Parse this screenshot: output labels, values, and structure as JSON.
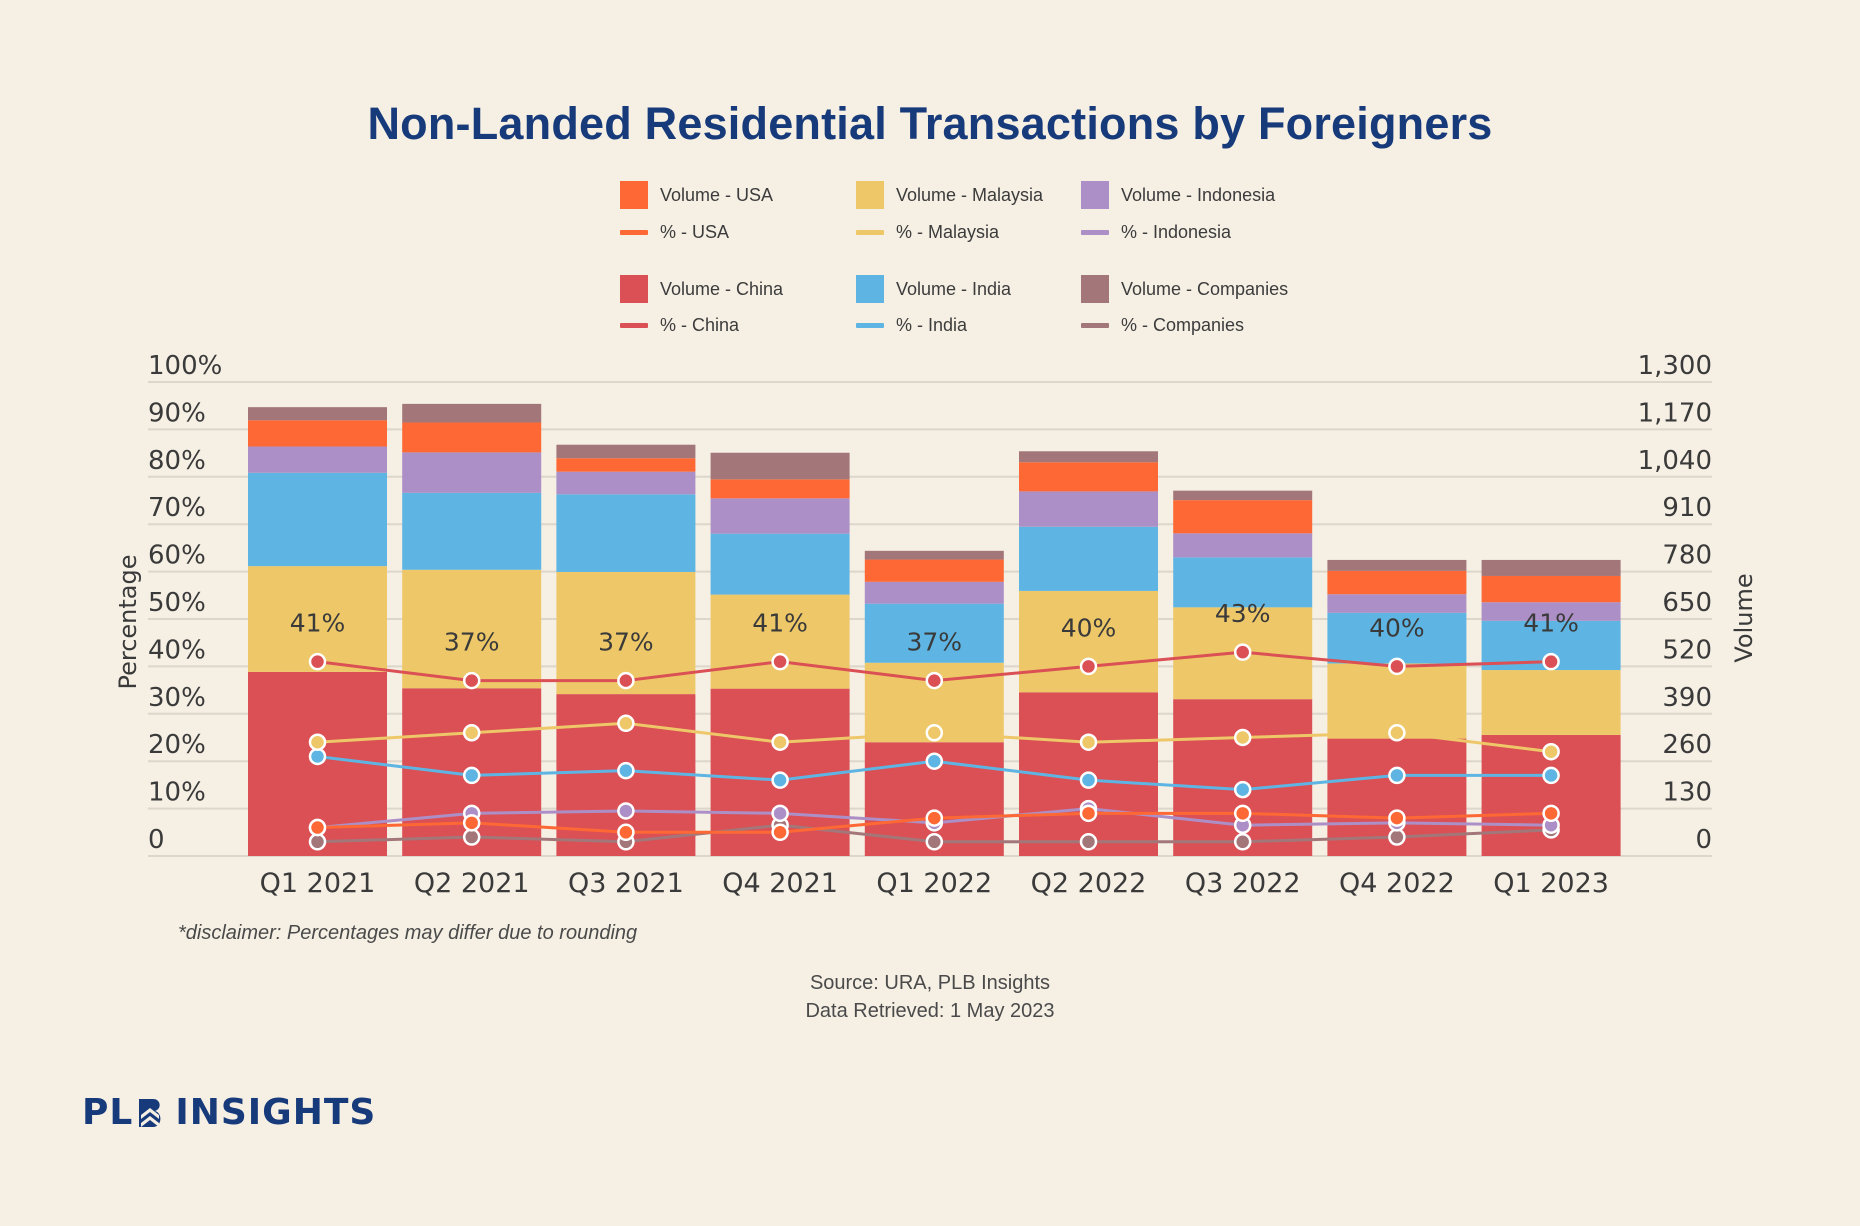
{
  "title": "Non-Landed Residential Transactions by Foreigners",
  "legend": [
    {
      "label": "Volume - USA",
      "kind": "bar",
      "series": "USA"
    },
    {
      "label": "% - USA",
      "kind": "line",
      "series": "USA"
    },
    {
      "label": "Volume - Malaysia",
      "kind": "bar",
      "series": "Malaysia"
    },
    {
      "label": "% - Malaysia",
      "kind": "line",
      "series": "Malaysia"
    },
    {
      "label": "Volume - Indonesia",
      "kind": "bar",
      "series": "Indonesia"
    },
    {
      "label": "% - Indonesia",
      "kind": "line",
      "series": "Indonesia"
    },
    {
      "label": "Volume - China",
      "kind": "bar",
      "series": "China"
    },
    {
      "label": "% - China",
      "kind": "line",
      "series": "China"
    },
    {
      "label": "Volume - India",
      "kind": "bar",
      "series": "India"
    },
    {
      "label": "% - India",
      "kind": "line",
      "series": "India"
    },
    {
      "label": "Volume - Companies",
      "kind": "bar",
      "series": "Companies"
    },
    {
      "label": "% - Companies",
      "kind": "line",
      "series": "Companies"
    }
  ],
  "colors": {
    "China": "#DA5055",
    "Malaysia": "#EEC868",
    "India": "#5EB5E3",
    "Indonesia": "#AC8FC6",
    "USA": "#FD6835",
    "Companies": "#A3777A",
    "background": "#F5EFE4",
    "title": "#173A7A",
    "grid": "#DDD6CB"
  },
  "chart_data": {
    "type": "bar",
    "subtype": "stacked bar with line overlay (dual axis)",
    "title": "Non-Landed Residential Transactions by Foreigners",
    "categories": [
      "Q1 2021",
      "Q2 2021",
      "Q3 2021",
      "Q4 2021",
      "Q1 2022",
      "Q2 2022",
      "Q3 2022",
      "Q4 2022",
      "Q1 2023"
    ],
    "ylabel_left": "Percentage",
    "ylabel_right": "Volume",
    "ylim_left": [
      0,
      100
    ],
    "ylim_right": [
      0,
      1300
    ],
    "yticks_left": [
      "0",
      "10%",
      "20%",
      "30%",
      "40%",
      "50%",
      "60%",
      "70%",
      "80%",
      "90%",
      "100%"
    ],
    "yticks_right": [
      "0",
      "130",
      "260",
      "390",
      "520",
      "650",
      "780",
      "910",
      "1,040",
      "1,170",
      "1,300"
    ],
    "grid": true,
    "legend_position": "top-center",
    "stack_order": [
      "China",
      "Malaysia",
      "India",
      "Indonesia",
      "USA",
      "Companies"
    ],
    "volume_series": [
      {
        "name": "Volume - China",
        "key": "China",
        "values": [
          505,
          460,
          444,
          459,
          312,
          449,
          430,
          322,
          332
        ]
      },
      {
        "name": "Volume - Malaysia",
        "key": "Malaysia",
        "values": [
          290,
          325,
          335,
          258,
          218,
          278,
          252,
          206,
          178
        ]
      },
      {
        "name": "Volume - India",
        "key": "India",
        "values": [
          256,
          211,
          213,
          167,
          162,
          176,
          137,
          139,
          135
        ]
      },
      {
        "name": "Volume - Indonesia",
        "key": "Indonesia",
        "values": [
          72,
          111,
          62,
          97,
          60,
          97,
          66,
          51,
          51
        ]
      },
      {
        "name": "Volume - USA",
        "key": "USA",
        "values": [
          72,
          82,
          37,
          52,
          61,
          80,
          91,
          64,
          72
        ]
      },
      {
        "name": "Volume - Companies",
        "key": "Companies",
        "values": [
          36,
          51,
          37,
          73,
          24,
          30,
          26,
          30,
          44
        ]
      }
    ],
    "percent_series": [
      {
        "name": "% - China",
        "key": "China",
        "values": [
          41,
          37,
          37,
          41,
          37,
          40,
          43,
          40,
          41
        ]
      },
      {
        "name": "% - Malaysia",
        "key": "Malaysia",
        "values": [
          24,
          26,
          28,
          24,
          26,
          24,
          25,
          26,
          22
        ]
      },
      {
        "name": "% - India",
        "key": "India",
        "values": [
          21,
          17,
          18,
          16,
          20,
          16,
          14,
          17,
          17
        ]
      },
      {
        "name": "% - Indonesia",
        "key": "Indonesia",
        "values": [
          6,
          9,
          9.5,
          9,
          7,
          10,
          6.5,
          7,
          6.5
        ]
      },
      {
        "name": "% - USA",
        "key": "USA",
        "values": [
          6,
          7,
          5,
          5,
          8,
          9,
          9,
          8,
          9
        ]
      },
      {
        "name": "% - Companies",
        "key": "Companies",
        "values": [
          3,
          4,
          3,
          6.5,
          3,
          3,
          3,
          4,
          5.5
        ]
      }
    ],
    "annotations": [
      "41%",
      "37%",
      "37%",
      "41%",
      "37%",
      "40%",
      "43%",
      "40%",
      "41%"
    ]
  },
  "disclaimer": "*disclaimer:  Percentages may differ due to rounding",
  "source": "Source: URA, PLB Insights",
  "retrieved": "Data Retrieved: 1 May 2023",
  "logo": {
    "left": "PL",
    "right": "INSIGHTS"
  }
}
